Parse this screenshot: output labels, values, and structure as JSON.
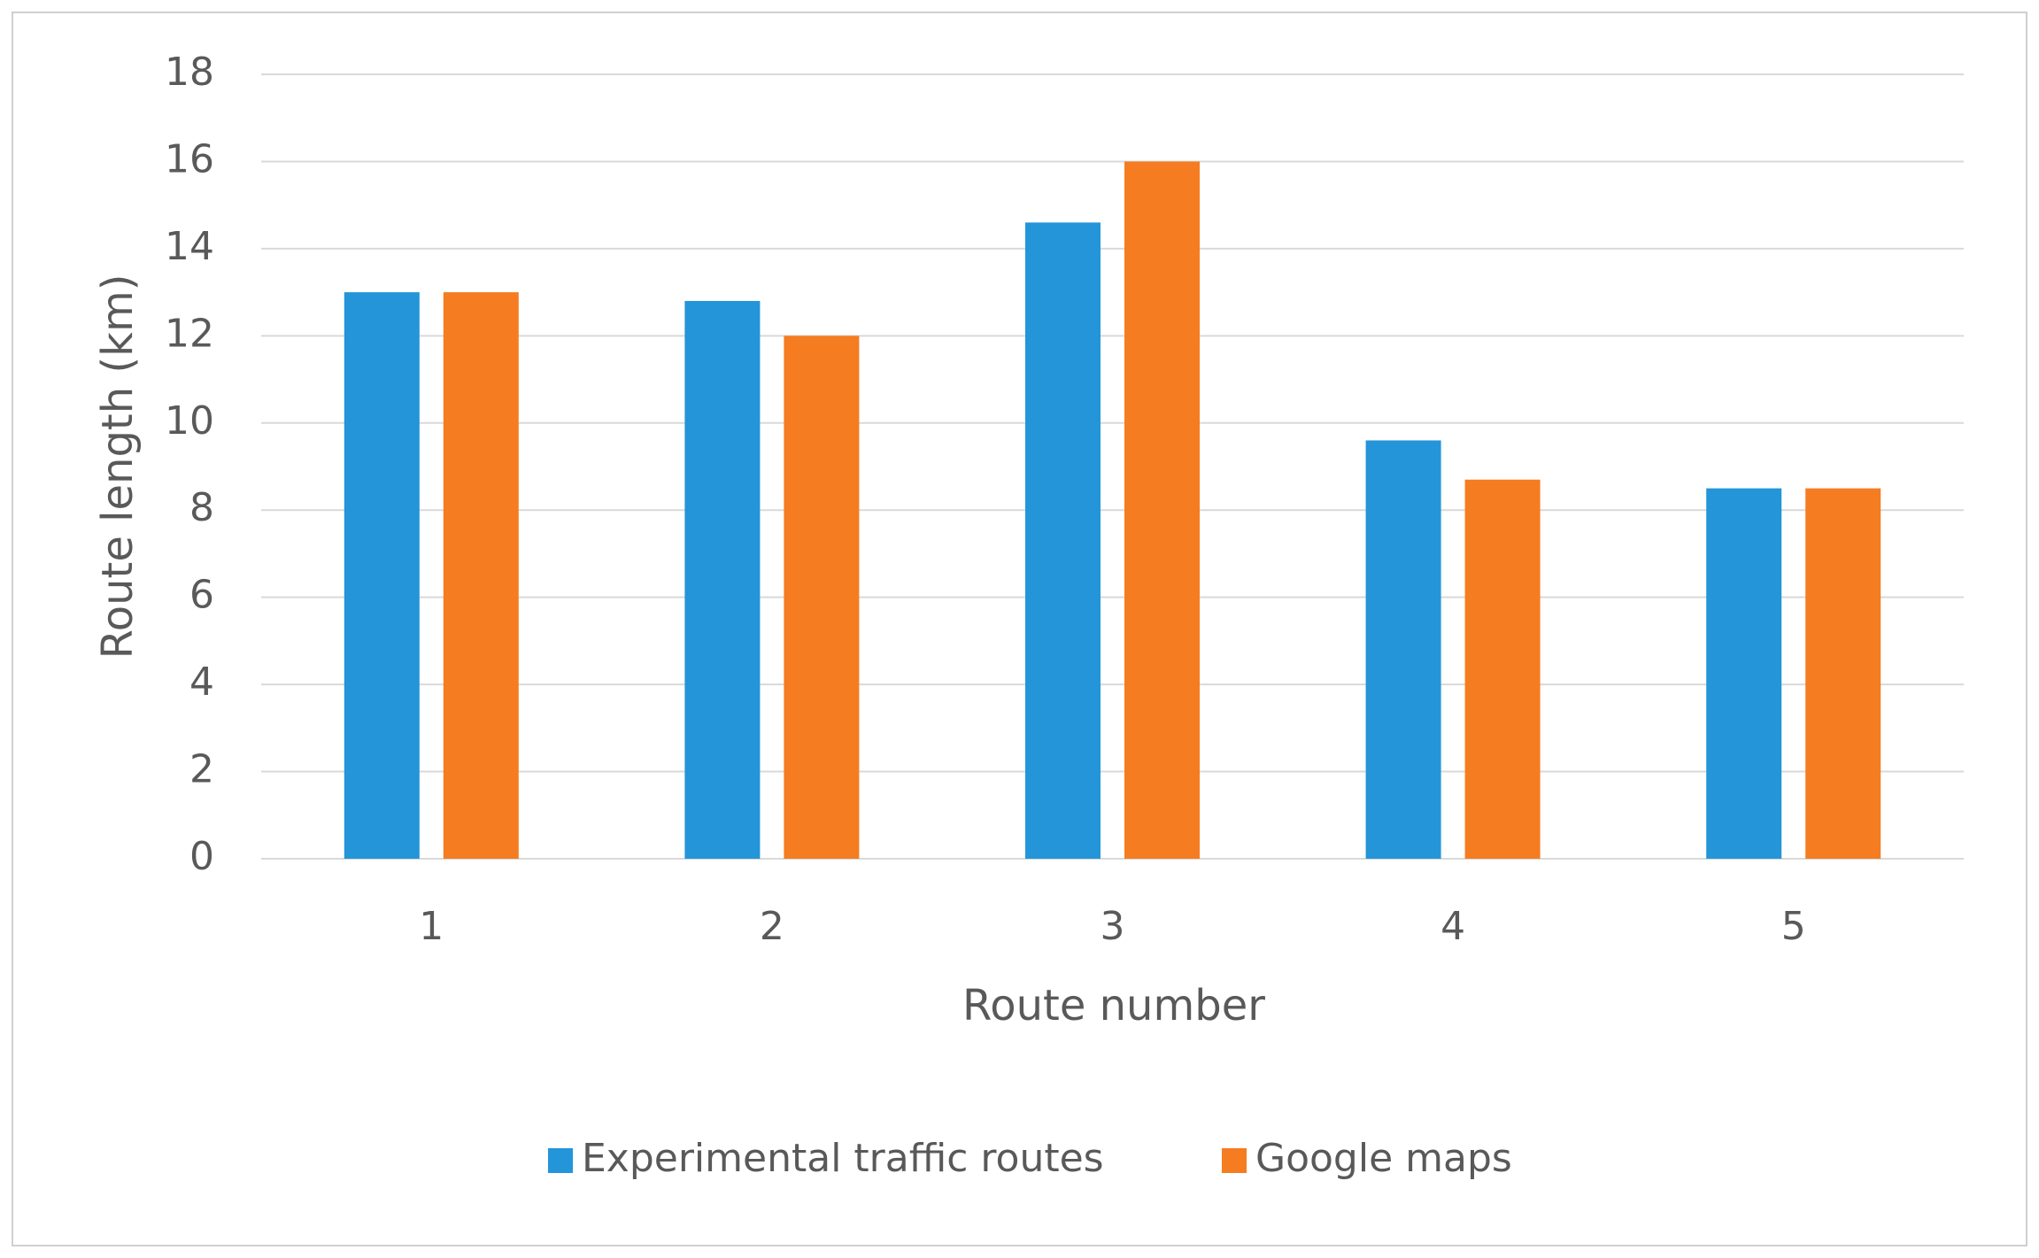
{
  "chart_data": {
    "type": "bar",
    "x_label": "Route number",
    "y_label": "Route length (km)",
    "categories": [
      "1",
      "2",
      "3",
      "4",
      "5"
    ],
    "series": [
      {
        "name": "Experimental traffic routes",
        "color": "#2395d8",
        "values": [
          13,
          12.8,
          14.6,
          9.6,
          8.5
        ]
      },
      {
        "name": "Google maps",
        "color": "#f57c21",
        "values": [
          13,
          12,
          16,
          8.7,
          8.5
        ]
      }
    ],
    "ylim": [
      0,
      18
    ],
    "yticks": [
      0,
      2,
      4,
      6,
      8,
      10,
      12,
      14,
      16,
      18
    ],
    "grid": true,
    "legend": "bottom"
  }
}
